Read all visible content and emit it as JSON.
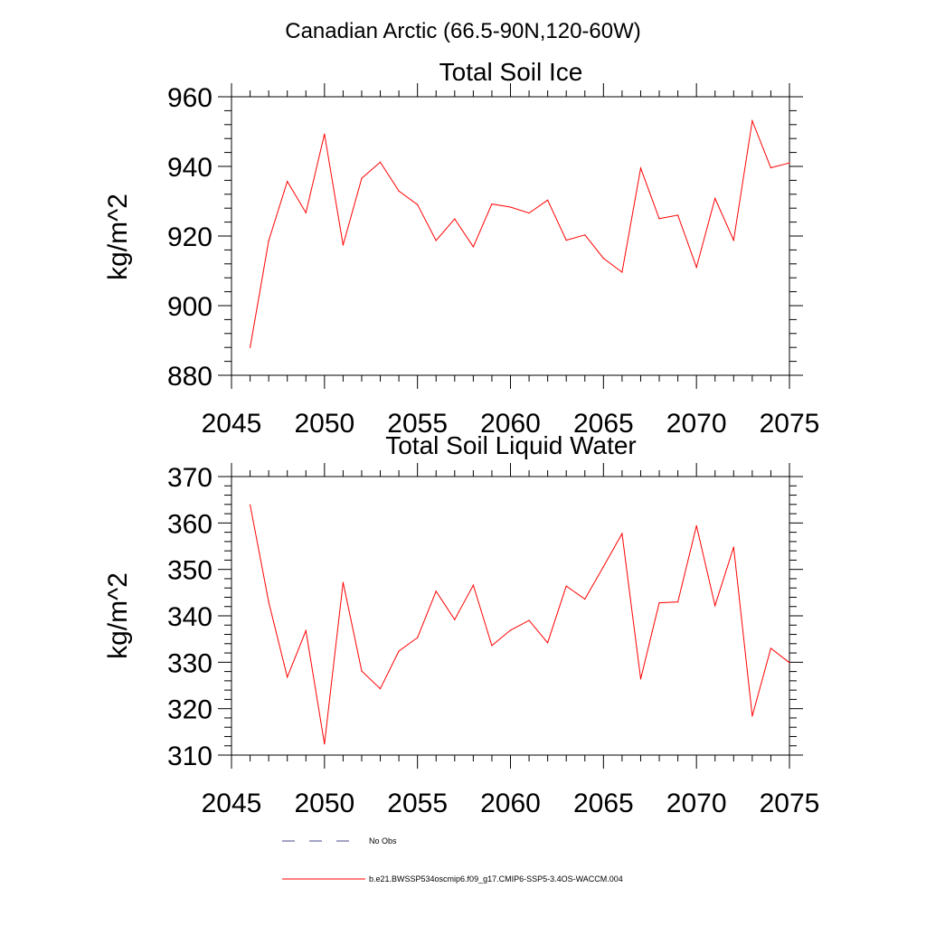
{
  "figure": {
    "title": "Canadian Arctic (66.5-90N,120-60W)"
  },
  "chart_data": [
    {
      "type": "line",
      "title": "Total Soil Ice",
      "xlabel": "",
      "ylabel": "kg/m^2",
      "xlim": [
        2045,
        2075
      ],
      "ylim": [
        880,
        960
      ],
      "xticks": [
        2045,
        2050,
        2055,
        2060,
        2065,
        2070,
        2075
      ],
      "yticks": [
        880,
        900,
        920,
        940,
        960
      ],
      "series": [
        {
          "name": "b.e21.BWSSP534oscmip6.f09_g17.CMIP6-SSP5-3.4OS-WACCM.004",
          "color": "#ff0000",
          "x": [
            2046,
            2047,
            2048,
            2049,
            2050,
            2051,
            2052,
            2053,
            2054,
            2055,
            2056,
            2057,
            2058,
            2059,
            2060,
            2061,
            2062,
            2063,
            2064,
            2065,
            2066,
            2067,
            2068,
            2069,
            2070,
            2071,
            2072,
            2073,
            2074,
            2075
          ],
          "values": [
            888.0,
            918.6,
            935.7,
            926.7,
            949.3,
            917.4,
            936.6,
            941.2,
            932.9,
            929.0,
            918.7,
            924.9,
            916.9,
            929.2,
            928.3,
            926.6,
            930.3,
            918.8,
            920.3,
            913.6,
            909.6,
            939.5,
            925.0,
            926.0,
            911.0,
            930.8,
            918.8,
            953.1,
            939.6,
            941.0
          ]
        }
      ]
    },
    {
      "type": "line",
      "title": "Total Soil Liquid Water",
      "xlabel": "",
      "ylabel": "kg/m^2",
      "xlim": [
        2045,
        2075
      ],
      "ylim": [
        310,
        370
      ],
      "xticks": [
        2045,
        2050,
        2055,
        2060,
        2065,
        2070,
        2075
      ],
      "yticks": [
        310,
        320,
        330,
        340,
        350,
        360,
        370
      ],
      "series": [
        {
          "name": "b.e21.BWSSP534oscmip6.f09_g17.CMIP6-SSP5-3.4OS-WACCM.004",
          "color": "#ff0000",
          "x": [
            2046,
            2047,
            2048,
            2049,
            2050,
            2051,
            2052,
            2053,
            2054,
            2055,
            2056,
            2057,
            2058,
            2059,
            2060,
            2061,
            2062,
            2063,
            2064,
            2065,
            2066,
            2067,
            2068,
            2069,
            2070,
            2071,
            2072,
            2073,
            2074,
            2075
          ],
          "values": [
            363.9,
            343.0,
            326.8,
            336.8,
            312.4,
            347.2,
            328.1,
            324.3,
            332.4,
            335.3,
            345.3,
            339.2,
            346.6,
            333.6,
            336.9,
            339.0,
            334.2,
            346.4,
            343.6,
            350.6,
            357.7,
            326.4,
            342.8,
            343.0,
            359.4,
            342.2,
            354.8,
            318.4,
            333.0,
            329.9
          ]
        }
      ]
    }
  ],
  "legend": [
    {
      "label": "No Obs",
      "style": "dashed",
      "color": "#4a4a8a"
    },
    {
      "label": "b.e21.BWSSP534oscmip6.f09_g17.CMIP6-SSP5-3.4OS-WACCM.004",
      "style": "solid",
      "color": "#ff0000"
    }
  ]
}
